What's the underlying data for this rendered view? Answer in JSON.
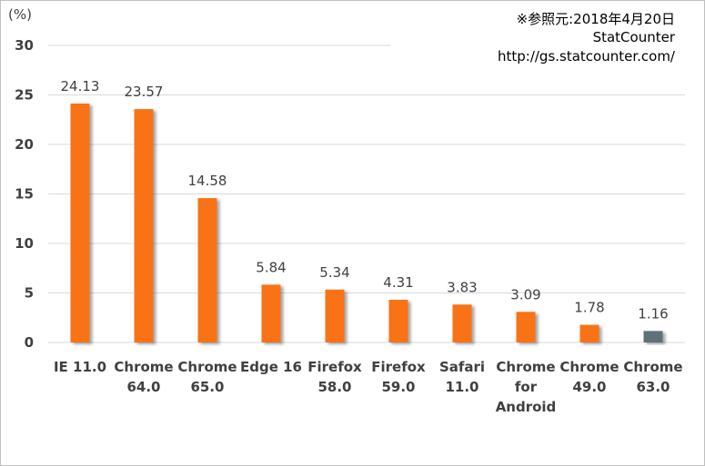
{
  "source": {
    "date_note": "※参照元:2018年4月20日",
    "name": "StatCounter",
    "url": "http://gs.statcounter.com/"
  },
  "chart_data": {
    "type": "bar",
    "title": "",
    "xlabel": "",
    "ylabel": "(%)",
    "ylim": [
      0,
      30
    ],
    "yticks": [
      0,
      5,
      10,
      15,
      20,
      25,
      30
    ],
    "grid": true,
    "categories": [
      [
        "IE 11.0"
      ],
      [
        "Chrome",
        "64.0"
      ],
      [
        "Chrome",
        "65.0"
      ],
      [
        "Edge 16"
      ],
      [
        "Firefox",
        "58.0"
      ],
      [
        "Firefox",
        "59.0"
      ],
      [
        "Safari",
        "11.0"
      ],
      [
        "Chrome",
        "for",
        "Android"
      ],
      [
        "Chrome",
        "49.0"
      ],
      [
        "Chrome",
        "63.0"
      ]
    ],
    "values": [
      24.13,
      23.57,
      14.58,
      5.84,
      5.34,
      4.31,
      3.83,
      3.09,
      1.78,
      1.16
    ],
    "value_labels": [
      "24.13",
      "23.57",
      "14.58",
      "5.84",
      "5.34",
      "4.31",
      "3.83",
      "3.09",
      "1.78",
      "1.16"
    ],
    "colors": [
      "#f97317",
      "#f97317",
      "#f97317",
      "#f97317",
      "#f97317",
      "#f97317",
      "#f97317",
      "#f97317",
      "#f97317",
      "#5f7278"
    ]
  }
}
